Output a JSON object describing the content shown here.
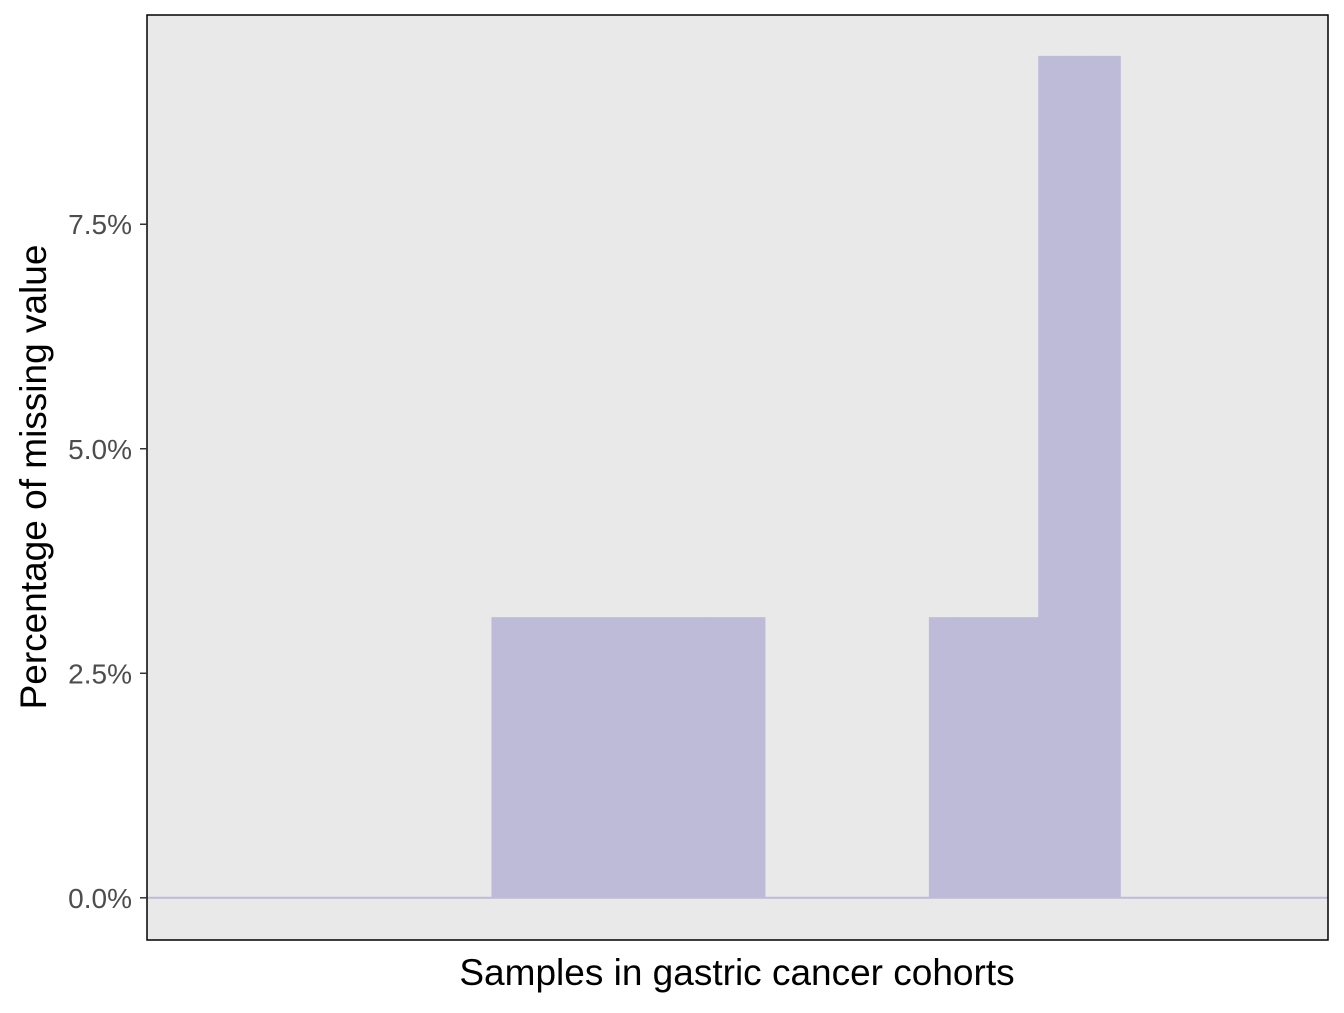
{
  "chart_data": {
    "type": "bar",
    "title": "",
    "xlabel": "Samples in gastric cancer cohorts",
    "ylabel": "Percentage of missing value",
    "y_ticks": [
      {
        "value": 0,
        "label": "0.0%"
      },
      {
        "value": 0.025,
        "label": "2.5%"
      },
      {
        "value": 0.05,
        "label": "5.0%"
      },
      {
        "value": 0.075,
        "label": "7.5%"
      }
    ],
    "ylim": [
      -0.0047,
      0.0983
    ],
    "x_tick_labels": "hidden",
    "sample_count": 42,
    "values": [
      0,
      0,
      0,
      0,
      0,
      0,
      0,
      0,
      0,
      0,
      0,
      0,
      0.03125,
      0.03125,
      0.03125,
      0.03125,
      0.03125,
      0.03125,
      0.03125,
      0.03125,
      0.03125,
      0.03125,
      0,
      0,
      0,
      0,
      0,
      0,
      0.03125,
      0.03125,
      0.03125,
      0.03125,
      0.09375,
      0.09375,
      0.09375,
      0,
      0,
      0,
      0,
      0,
      0,
      0
    ],
    "bar_color": "#bebbd9",
    "baseline_color": "#bebbd9",
    "panel_background": "#e9e9e9",
    "panel_border": "#000000",
    "grid": false,
    "legend": "none"
  }
}
